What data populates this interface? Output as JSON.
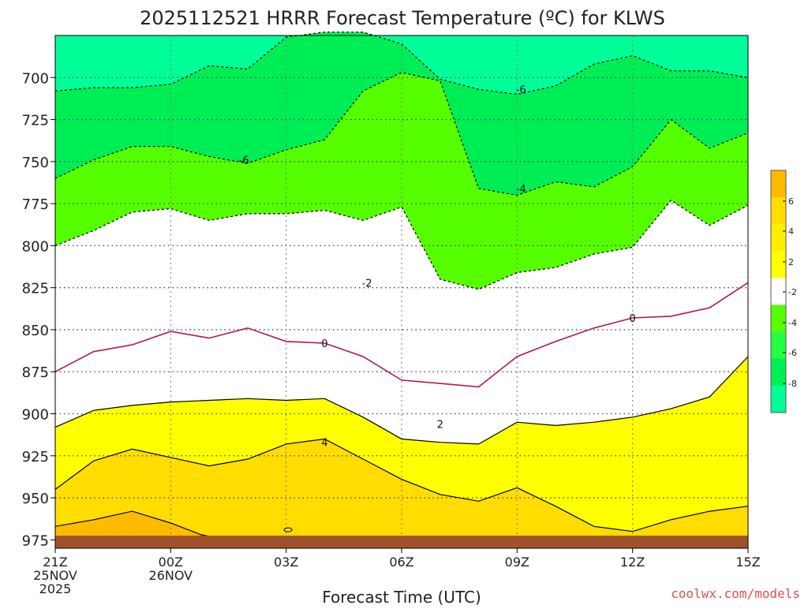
{
  "chart_data": {
    "type": "contour",
    "title": "2025112521 HRRR Forecast Temperature (ºC) for KLWS",
    "xlabel": "Forecast Time (UTC)",
    "credit": "coolwx.com/models",
    "x_hours": [
      0,
      1,
      2,
      3,
      4,
      5,
      6,
      7,
      8,
      9,
      10,
      11,
      12,
      13,
      14,
      15,
      16,
      17,
      18
    ],
    "x_ticks": [
      {
        "hour": 0,
        "lines": [
          "21Z",
          "25NOV",
          "2025"
        ]
      },
      {
        "hour": 3,
        "lines": [
          "00Z",
          "26NOV"
        ]
      },
      {
        "hour": 6,
        "lines": [
          "03Z"
        ]
      },
      {
        "hour": 9,
        "lines": [
          "06Z"
        ]
      },
      {
        "hour": 12,
        "lines": [
          "09Z"
        ]
      },
      {
        "hour": 15,
        "lines": [
          "12Z"
        ]
      },
      {
        "hour": 18,
        "lines": [
          "15Z"
        ]
      }
    ],
    "y_ticks": [
      700,
      725,
      750,
      775,
      800,
      825,
      850,
      875,
      900,
      925,
      950,
      975
    ],
    "ylim": [
      975,
      675
    ],
    "grid": "dotted",
    "colors": {
      "lt_-6": "#00ff99",
      "-6_-4": "#00ee55",
      "-4_-2": "#55ff00",
      "-2_2": "#ffffff",
      "2_4": "#ffff00",
      "4_6": "#ffdd00",
      "gt_6": "#ffbb00",
      "ground": "#a0522d",
      "freezing_line": "#b0175a"
    },
    "isotherms": [
      {
        "value": -6,
        "label": "-6",
        "style": "dashed",
        "pressures": [
          708,
          706,
          706,
          704,
          693,
          695,
          676,
          673,
          673,
          680,
          701,
          707,
          710,
          705,
          692,
          687,
          696,
          696,
          700
        ],
        "labels_at": [
          [
            4.9,
            749
          ],
          [
            12.1,
            707
          ]
        ]
      },
      {
        "value": -4,
        "label": "-4",
        "style": "dashed",
        "pressures": [
          760,
          749,
          741,
          741,
          747,
          751,
          743,
          737,
          708,
          697,
          702,
          766,
          770,
          762,
          765,
          753,
          725,
          742,
          733
        ],
        "labels_at": [
          [
            12.1,
            766
          ]
        ]
      },
      {
        "value": -2,
        "label": "-2",
        "style": "dashed",
        "pressures": [
          800,
          791,
          780,
          778,
          785,
          781,
          781,
          779,
          785,
          777,
          820,
          826,
          816,
          813,
          805,
          801,
          773,
          788,
          776
        ],
        "labels_at": [
          [
            8.1,
            822
          ]
        ]
      },
      {
        "value": 0,
        "label": "0",
        "style": "solid",
        "pressures": [
          875,
          863,
          859,
          851,
          855,
          849,
          857,
          858,
          866,
          880,
          882,
          884,
          866,
          857,
          849,
          843,
          842,
          837,
          822
        ],
        "labels_at": [
          [
            7.0,
            858
          ],
          [
            15.0,
            843
          ]
        ]
      },
      {
        "value": 2,
        "label": "2",
        "style": "solid",
        "pressures": [
          908,
          898,
          895,
          893,
          892,
          891,
          892,
          891,
          902,
          915,
          917,
          918,
          905,
          907,
          905,
          902,
          897,
          890,
          866
        ],
        "labels_at": [
          [
            10.0,
            906
          ]
        ]
      },
      {
        "value": 4,
        "label": "4",
        "style": "solid",
        "pressures": [
          945,
          928,
          921,
          926,
          931,
          927,
          918,
          915,
          927,
          939,
          948,
          952,
          944,
          955,
          967,
          970,
          963,
          958,
          955
        ],
        "labels_at": [
          [
            7.0,
            917
          ]
        ]
      },
      {
        "value": 6,
        "label": "6",
        "style": "solid",
        "pressures": [
          967,
          963,
          958,
          965,
          972,
          975
        ],
        "x_subset": [
          0,
          1,
          2,
          3,
          3.8,
          4.5
        ]
      }
    ],
    "colorbar": {
      "ticks": [
        "6",
        "4",
        "2",
        "-2",
        "-4",
        "-6",
        "-8"
      ]
    }
  }
}
